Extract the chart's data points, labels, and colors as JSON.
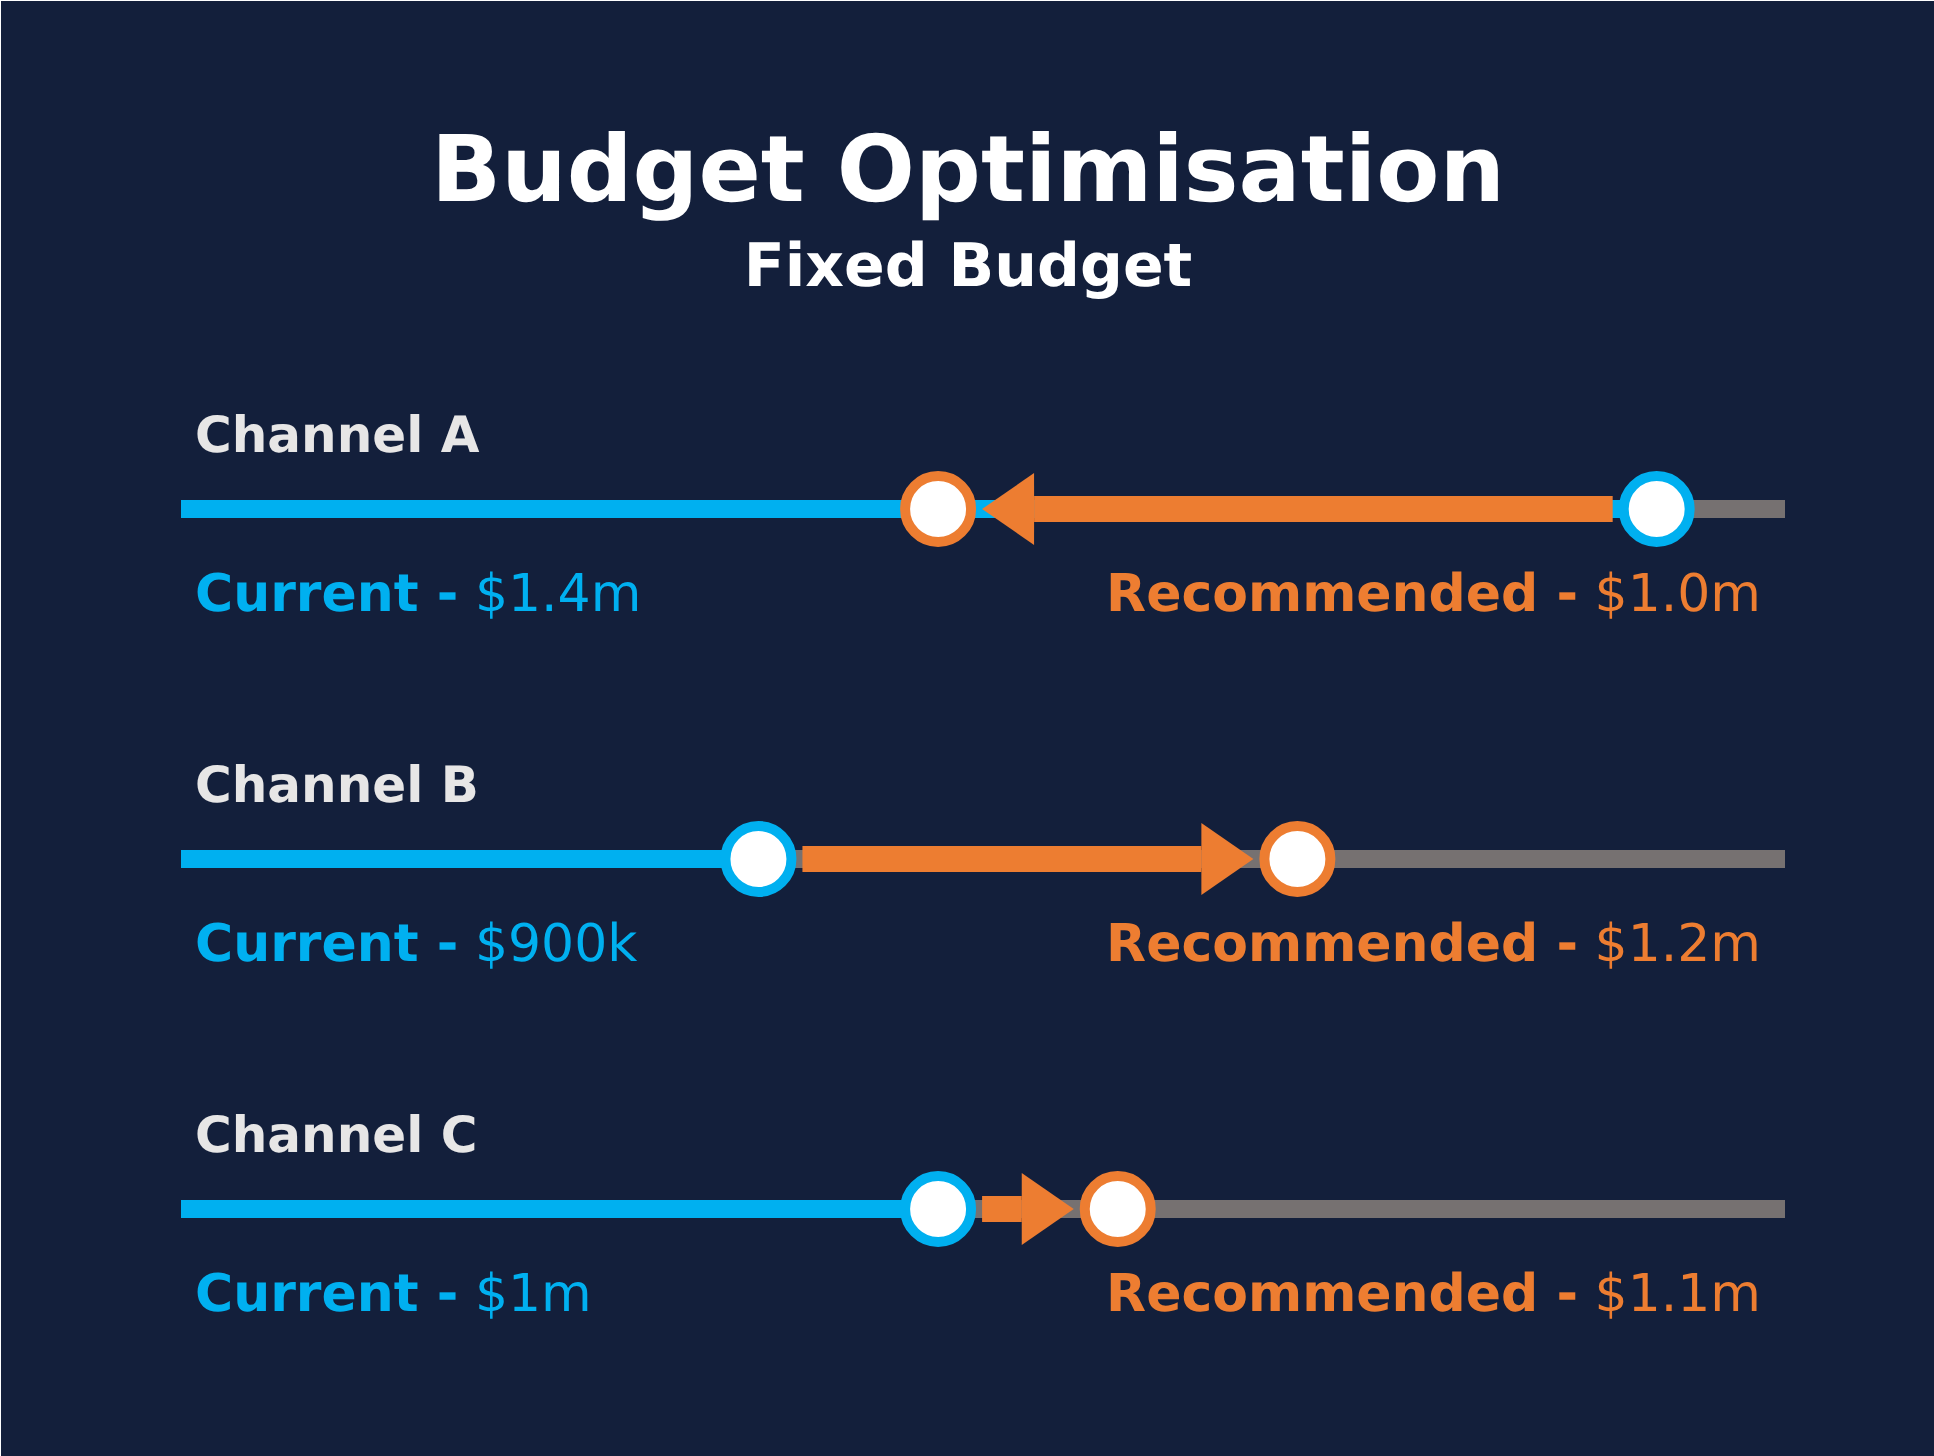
{
  "chart_data": {
    "type": "other",
    "title": "Budget Optimisation",
    "subtitle": "Fixed Budget",
    "categories": [
      "Channel A",
      "Channel B",
      "Channel C"
    ],
    "series": [
      {
        "name": "Current -",
        "color": "#00b0f0",
        "values": [
          1400000,
          900000,
          1000000
        ],
        "value_labels": [
          "$1.4m",
          "$900k",
          "$1m"
        ]
      },
      {
        "name": "Recommended -",
        "color": "#ed7d31",
        "values": [
          1000000,
          1200000,
          1100000
        ],
        "value_labels": [
          "$1.0m",
          "$1.2m",
          "$1.1m"
        ]
      }
    ]
  }
}
